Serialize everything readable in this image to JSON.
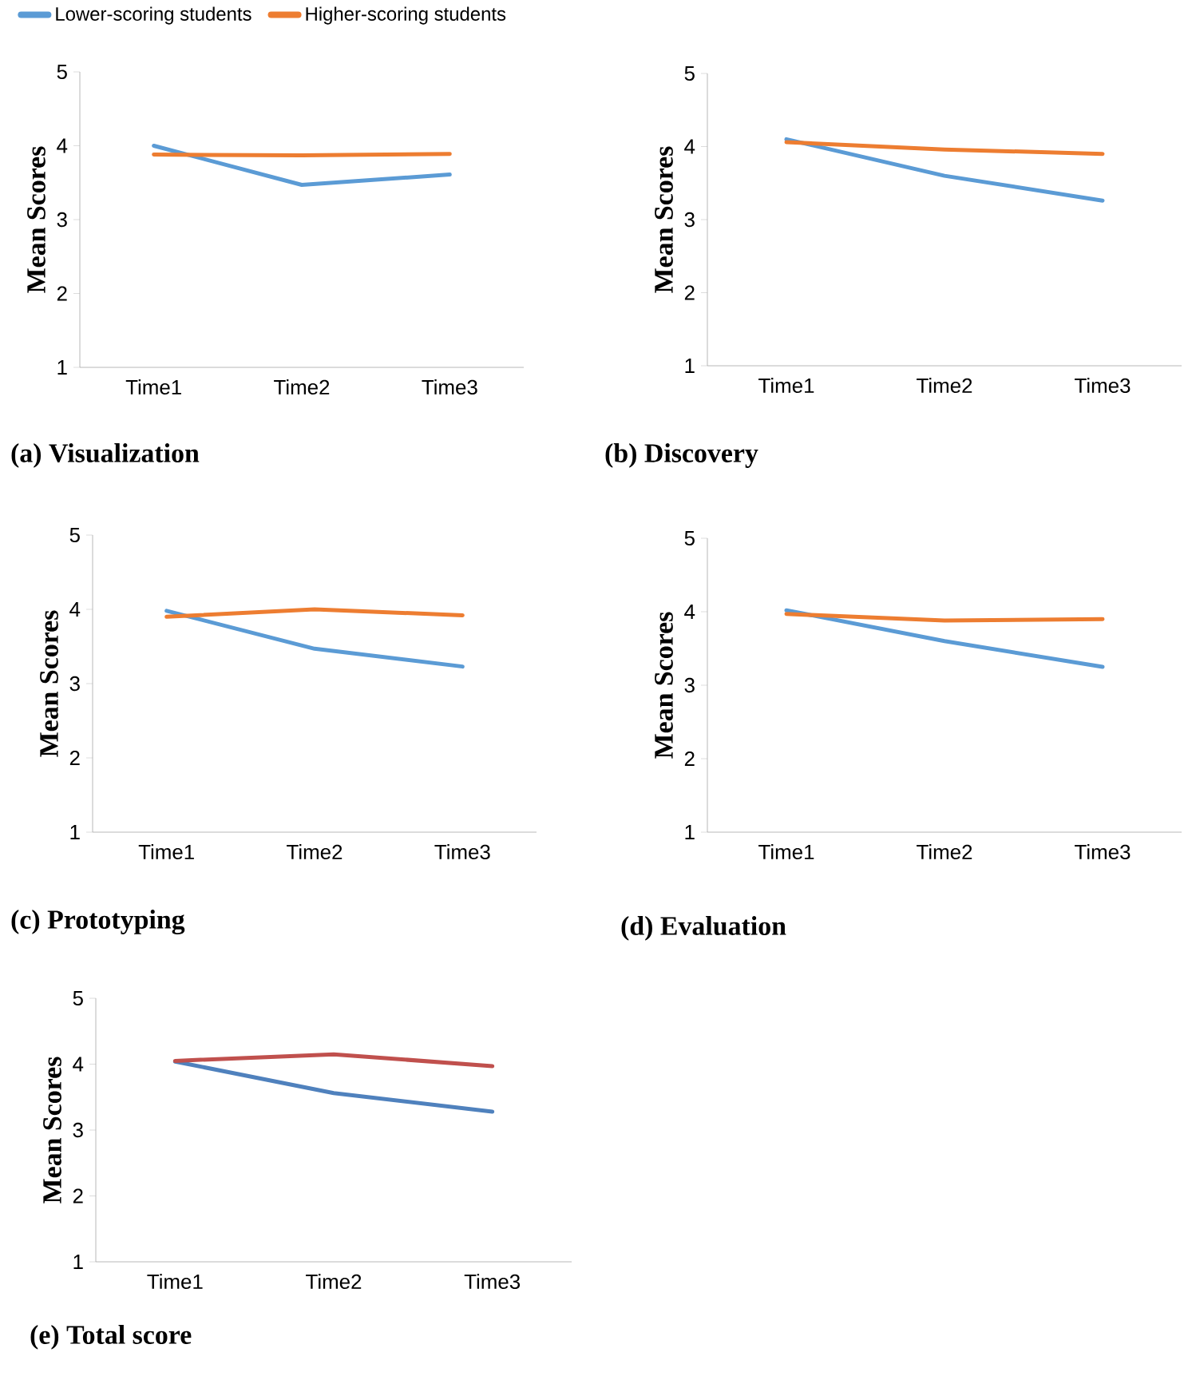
{
  "chart_data": [
    {
      "type": "line",
      "title": "(a) Visualization",
      "ylabel": "Mean Scores",
      "categories": [
        "Time1",
        "Time2",
        "Time3"
      ],
      "ylim": [
        1,
        5
      ],
      "yticks": [
        1,
        2,
        3,
        4,
        5
      ],
      "legend": "top",
      "series": [
        {
          "name": "Lower-scoring students",
          "color": "#5b9bd5",
          "values": [
            4.0,
            3.47,
            3.61
          ]
        },
        {
          "name": "Higher-scoring students",
          "color": "#ed7d31",
          "values": [
            3.88,
            3.87,
            3.89
          ]
        }
      ]
    },
    {
      "type": "line",
      "title": "(b) Discovery",
      "ylabel": "Mean Scores",
      "categories": [
        "Time1",
        "Time2",
        "Time3"
      ],
      "ylim": [
        1,
        5
      ],
      "yticks": [
        1,
        2,
        3,
        4,
        5
      ],
      "series": [
        {
          "color": "#5b9bd5",
          "values": [
            4.1,
            3.6,
            3.26
          ]
        },
        {
          "color": "#ed7d31",
          "values": [
            4.06,
            3.96,
            3.9
          ]
        }
      ]
    },
    {
      "type": "line",
      "title": "(c) Prototyping",
      "ylabel": "Mean Scores",
      "categories": [
        "Time1",
        "Time2",
        "Time3"
      ],
      "ylim": [
        1,
        5
      ],
      "yticks": [
        1,
        2,
        3,
        4,
        5
      ],
      "series": [
        {
          "color": "#5b9bd5",
          "values": [
            3.98,
            3.47,
            3.23
          ]
        },
        {
          "color": "#ed7d31",
          "values": [
            3.9,
            4.0,
            3.92
          ]
        }
      ]
    },
    {
      "type": "line",
      "title": "(d) Evaluation",
      "ylabel": "Mean Scores",
      "categories": [
        "Time1",
        "Time2",
        "Time3"
      ],
      "ylim": [
        1,
        5
      ],
      "yticks": [
        1,
        2,
        3,
        4,
        5
      ],
      "series": [
        {
          "color": "#5b9bd5",
          "values": [
            4.02,
            3.6,
            3.25
          ]
        },
        {
          "color": "#ed7d31",
          "values": [
            3.97,
            3.88,
            3.9
          ]
        }
      ]
    },
    {
      "type": "line",
      "title": "(e) Total score",
      "ylabel": "Mean Scores",
      "categories": [
        "Time1",
        "Time2",
        "Time3"
      ],
      "ylim": [
        1,
        5
      ],
      "yticks": [
        1,
        2,
        3,
        4,
        5
      ],
      "series": [
        {
          "color": "#4f81bd",
          "values": [
            4.04,
            3.56,
            3.28
          ]
        },
        {
          "color": "#c0504d",
          "values": [
            4.05,
            4.15,
            3.97
          ]
        }
      ]
    }
  ]
}
